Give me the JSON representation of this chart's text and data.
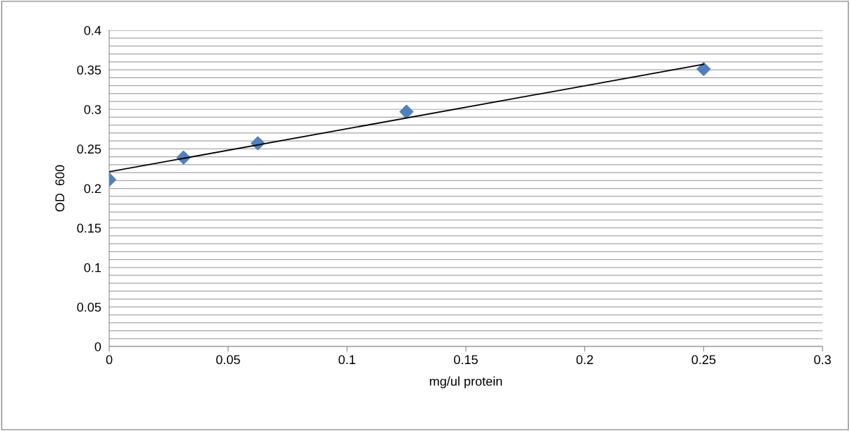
{
  "chart_data": {
    "type": "scatter",
    "xlabel": "mg/ul protein",
    "ylabel": "OD  600",
    "series": [
      {
        "color": "#4f81bd",
        "marker": "diamond",
        "x": [
          0,
          0.03125,
          0.0625,
          0.125,
          0.25
        ],
        "values": [
          0.211,
          0.239,
          0.257,
          0.297,
          0.351
        ]
      },
      {
        "type": "line",
        "color": "#000000",
        "marker": "none",
        "line_style": "solid",
        "x": [
          0,
          0.25
        ],
        "values": [
          0.221,
          0.357
        ]
      }
    ],
    "xlim": [
      0,
      0.3
    ],
    "xticks": [
      0,
      0.05,
      0.1,
      0.15,
      0.2,
      0.25,
      0.3
    ],
    "ylim": [
      0,
      0.4
    ],
    "yticks": [
      0,
      {
        "value": 0.01,
        "label": null
      },
      {
        "value": 0.02,
        "label": null
      },
      {
        "value": 0.03,
        "label": null
      },
      {
        "value": 0.04,
        "label": null
      },
      0.05,
      {
        "value": 0.06,
        "label": null
      },
      {
        "value": 0.07,
        "label": null
      },
      {
        "value": 0.08,
        "label": null
      },
      {
        "value": 0.09,
        "label": null
      },
      0.1,
      {
        "value": 0.11,
        "label": null
      },
      {
        "value": 0.12,
        "label": null
      },
      {
        "value": 0.13,
        "label": null
      },
      {
        "value": 0.14,
        "label": null
      },
      0.15,
      {
        "value": 0.16,
        "label": null
      },
      {
        "value": 0.17,
        "label": null
      },
      {
        "value": 0.18,
        "label": null
      },
      {
        "value": 0.19,
        "label": null
      },
      0.2,
      {
        "value": 0.21,
        "label": null
      },
      {
        "value": 0.22,
        "label": null
      },
      {
        "value": 0.23,
        "label": null
      },
      {
        "value": 0.24,
        "label": null
      },
      0.25,
      {
        "value": 0.26,
        "label": null
      },
      {
        "value": 0.27,
        "label": null
      },
      {
        "value": 0.28,
        "label": null
      },
      {
        "value": 0.29,
        "label": null
      },
      0.3,
      {
        "value": 0.31,
        "label": null
      },
      {
        "value": 0.32,
        "label": null
      },
      {
        "value": 0.33,
        "label": null
      },
      {
        "value": 0.34,
        "label": null
      },
      0.35,
      {
        "value": 0.36,
        "label": null
      },
      {
        "value": 0.37,
        "label": null
      },
      {
        "value": 0.38,
        "label": null
      },
      {
        "value": 0.39,
        "label": null
      },
      0.4
    ],
    "grid": "y"
  }
}
